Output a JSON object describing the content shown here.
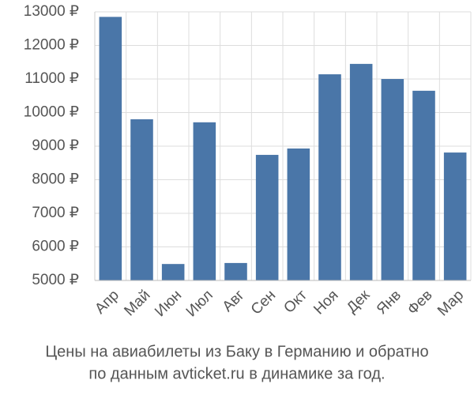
{
  "chart_data": {
    "type": "bar",
    "title": "Цены на авиабилеты из Баку в Германию и обратно",
    "subtitle": "по данным avticket.ru в динамике за год.",
    "categories": [
      "Апр",
      "Май",
      "Июн",
      "Июл",
      "Авг",
      "Сен",
      "Окт",
      "Ноя",
      "Дек",
      "Янв",
      "Фев",
      "Мар"
    ],
    "values": [
      12850,
      9800,
      5490,
      9710,
      5520,
      8740,
      8930,
      11140,
      11450,
      11000,
      10650,
      8810
    ],
    "color": "#4a76a8",
    "ylim": [
      5000,
      13000
    ],
    "yticks": [
      {
        "value": 5000,
        "label": "5000 ₽"
      },
      {
        "value": 6000,
        "label": "6000 ₽"
      },
      {
        "value": 7000,
        "label": "7000 ₽"
      },
      {
        "value": 8000,
        "label": "8000 ₽"
      },
      {
        "value": 9000,
        "label": "9000 ₽"
      },
      {
        "value": 10000,
        "label": "10000 ₽"
      },
      {
        "value": 11000,
        "label": "11000 ₽"
      },
      {
        "value": 12000,
        "label": "12000 ₽"
      },
      {
        "value": 13000,
        "label": "13000 ₽"
      }
    ],
    "grid": true
  }
}
